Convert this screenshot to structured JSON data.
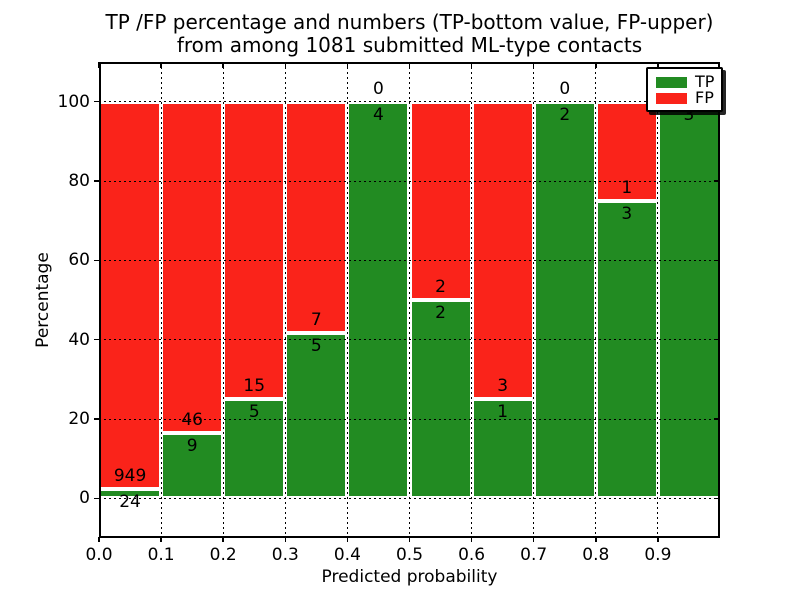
{
  "title": {
    "line1": "TP /FP percentage and numbers (TP-bottom value, FP-upper)",
    "line2": "from among 1081 submitted ML-type contacts"
  },
  "axes": {
    "xlabel": "Predicted probability",
    "ylabel": "Percentage"
  },
  "chart_data": {
    "type": "bar",
    "stacked": true,
    "orientation": "vertical",
    "title": "TP /FP percentage and numbers (TP-bottom value, FP-upper) from among 1081 submitted ML-type contacts",
    "xlabel": "Predicted probability",
    "ylabel": "Percentage",
    "total_contacts": 1081,
    "x_bins": [
      [
        0.0,
        0.1
      ],
      [
        0.1,
        0.2
      ],
      [
        0.2,
        0.3
      ],
      [
        0.3,
        0.4
      ],
      [
        0.4,
        0.5
      ],
      [
        0.5,
        0.6
      ],
      [
        0.6,
        0.7
      ],
      [
        0.7,
        0.8
      ],
      [
        0.8,
        0.9
      ],
      [
        0.9,
        1.0
      ]
    ],
    "xticks": [
      "0.0",
      "0.1",
      "0.2",
      "0.3",
      "0.4",
      "0.5",
      "0.6",
      "0.7",
      "0.8",
      "0.9"
    ],
    "yticks": [
      0,
      20,
      40,
      60,
      80,
      100
    ],
    "xlim": [
      0.0,
      1.0
    ],
    "ylim": [
      -10,
      110
    ],
    "grid": "dotted",
    "legend_position": "upper right",
    "series": [
      {
        "name": "TP",
        "color": "#228b22",
        "counts": [
          24,
          9,
          5,
          5,
          4,
          2,
          1,
          2,
          3,
          3
        ],
        "percent": [
          2.47,
          16.36,
          25.0,
          41.67,
          100.0,
          50.0,
          25.0,
          100.0,
          75.0,
          100.0
        ]
      },
      {
        "name": "FP",
        "color": "#fa231a",
        "counts": [
          949,
          46,
          15,
          7,
          0,
          2,
          3,
          0,
          1,
          0
        ],
        "percent": [
          97.53,
          83.64,
          75.0,
          58.33,
          0.0,
          50.0,
          75.0,
          0.0,
          25.0,
          0.0
        ]
      }
    ]
  },
  "legend": {
    "entries": [
      {
        "label": "TP",
        "color": "#228b22"
      },
      {
        "label": "FP",
        "color": "#fa231a"
      }
    ]
  }
}
